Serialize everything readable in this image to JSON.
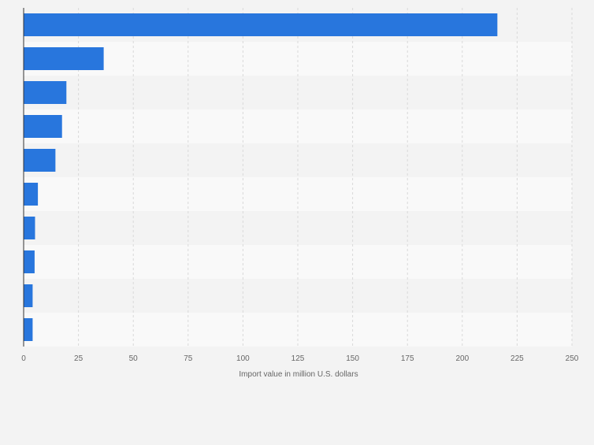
{
  "chart_data": {
    "type": "bar",
    "orientation": "horizontal",
    "categories": [
      "",
      "",
      "",
      "",
      "",
      "",
      "",
      "",
      "",
      ""
    ],
    "values": [
      216,
      36.5,
      19.5,
      17.5,
      14.5,
      6.5,
      5.2,
      5.0,
      4.1,
      4.1
    ],
    "xlabel": "Import value in million U.S. dollars",
    "ylabel": "",
    "xlim": [
      0,
      250
    ],
    "xticks": [
      0,
      25,
      50,
      75,
      100,
      125,
      150,
      175,
      200,
      225,
      250
    ],
    "grid": true,
    "legend": "none",
    "colors": {
      "bar": "#2876dd",
      "band_light": "#f9f9f9",
      "band_dark": "#f3f3f3",
      "grid": "#d9d9d9",
      "axis": "#333333"
    }
  }
}
